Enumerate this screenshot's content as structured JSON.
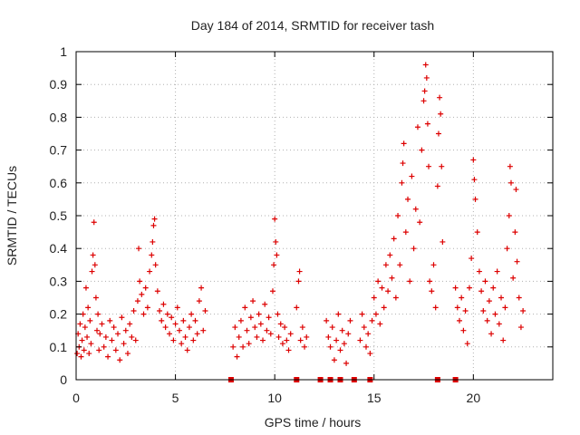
{
  "chart_data": {
    "type": "scatter",
    "title": "Day 184 of 2014, SRMTID for receiver tash",
    "xlabel": "GPS time / hours",
    "ylabel": "SRMTID / TECUs",
    "xlim": [
      0,
      24
    ],
    "ylim": [
      0,
      1
    ],
    "xticks": [
      0,
      5,
      10,
      15,
      20
    ],
    "xtick_labels": [
      "0",
      "5",
      "10",
      "15",
      "20"
    ],
    "yticks": [
      0,
      0.1,
      0.2,
      0.3,
      0.4,
      0.5,
      0.6,
      0.7,
      0.8,
      0.9,
      1
    ],
    "ytick_labels": [
      "0",
      "0.1",
      "0.2",
      "0.3",
      "0.4",
      "0.5",
      "0.6",
      "0.7",
      "0.8",
      "0.9",
      "1"
    ],
    "grid": true,
    "marker": "+",
    "color": "#dd0000",
    "zero_markers_x": [
      7.8,
      11.1,
      12.3,
      12.8,
      13.3,
      14.0,
      14.8,
      18.2,
      19.1
    ],
    "series": [
      {
        "name": "SRMTID",
        "points": [
          [
            0.05,
            0.08
          ],
          [
            0.1,
            0.14
          ],
          [
            0.15,
            0.1
          ],
          [
            0.2,
            0.17
          ],
          [
            0.25,
            0.07
          ],
          [
            0.3,
            0.12
          ],
          [
            0.35,
            0.2
          ],
          [
            0.4,
            0.09
          ],
          [
            0.45,
            0.16
          ],
          [
            0.5,
            0.28
          ],
          [
            0.55,
            0.13
          ],
          [
            0.6,
            0.22
          ],
          [
            0.65,
            0.08
          ],
          [
            0.7,
            0.18
          ],
          [
            0.75,
            0.11
          ],
          [
            0.8,
            0.33
          ],
          [
            0.85,
            0.38
          ],
          [
            0.9,
            0.48
          ],
          [
            0.95,
            0.35
          ],
          [
            1.0,
            0.25
          ],
          [
            1.05,
            0.15
          ],
          [
            1.1,
            0.2
          ],
          [
            1.15,
            0.09
          ],
          [
            1.2,
            0.14
          ],
          [
            1.3,
            0.17
          ],
          [
            1.4,
            0.1
          ],
          [
            1.5,
            0.13
          ],
          [
            1.6,
            0.07
          ],
          [
            1.7,
            0.18
          ],
          [
            1.8,
            0.12
          ],
          [
            1.9,
            0.16
          ],
          [
            2.0,
            0.09
          ],
          [
            2.1,
            0.14
          ],
          [
            2.2,
            0.06
          ],
          [
            2.3,
            0.19
          ],
          [
            2.4,
            0.11
          ],
          [
            2.5,
            0.15
          ],
          [
            2.6,
            0.08
          ],
          [
            2.7,
            0.17
          ],
          [
            2.8,
            0.13
          ],
          [
            2.9,
            0.21
          ],
          [
            3.0,
            0.12
          ],
          [
            3.1,
            0.24
          ],
          [
            3.15,
            0.4
          ],
          [
            3.2,
            0.3
          ],
          [
            3.3,
            0.26
          ],
          [
            3.4,
            0.2
          ],
          [
            3.5,
            0.28
          ],
          [
            3.6,
            0.22
          ],
          [
            3.7,
            0.33
          ],
          [
            3.8,
            0.38
          ],
          [
            3.85,
            0.42
          ],
          [
            3.9,
            0.47
          ],
          [
            3.95,
            0.49
          ],
          [
            4.0,
            0.35
          ],
          [
            4.1,
            0.27
          ],
          [
            4.2,
            0.21
          ],
          [
            4.3,
            0.18
          ],
          [
            4.4,
            0.23
          ],
          [
            4.5,
            0.16
          ],
          [
            4.6,
            0.2
          ],
          [
            4.7,
            0.14
          ],
          [
            4.8,
            0.19
          ],
          [
            4.9,
            0.12
          ],
          [
            5.0,
            0.17
          ],
          [
            5.1,
            0.22
          ],
          [
            5.2,
            0.15
          ],
          [
            5.3,
            0.11
          ],
          [
            5.4,
            0.18
          ],
          [
            5.5,
            0.13
          ],
          [
            5.6,
            0.09
          ],
          [
            5.7,
            0.16
          ],
          [
            5.8,
            0.2
          ],
          [
            5.9,
            0.12
          ],
          [
            6.0,
            0.18
          ],
          [
            6.1,
            0.14
          ],
          [
            6.2,
            0.24
          ],
          [
            6.3,
            0.28
          ],
          [
            6.4,
            0.15
          ],
          [
            6.5,
            0.21
          ],
          [
            7.9,
            0.1
          ],
          [
            8.0,
            0.16
          ],
          [
            8.1,
            0.07
          ],
          [
            8.2,
            0.13
          ],
          [
            8.3,
            0.18
          ],
          [
            8.4,
            0.1
          ],
          [
            8.5,
            0.22
          ],
          [
            8.6,
            0.15
          ],
          [
            8.7,
            0.11
          ],
          [
            8.8,
            0.19
          ],
          [
            8.9,
            0.24
          ],
          [
            9.0,
            0.16
          ],
          [
            9.1,
            0.13
          ],
          [
            9.2,
            0.2
          ],
          [
            9.3,
            0.17
          ],
          [
            9.4,
            0.12
          ],
          [
            9.5,
            0.23
          ],
          [
            9.6,
            0.15
          ],
          [
            9.7,
            0.19
          ],
          [
            9.8,
            0.14
          ],
          [
            9.9,
            0.27
          ],
          [
            9.95,
            0.35
          ],
          [
            10.0,
            0.49
          ],
          [
            10.05,
            0.42
          ],
          [
            10.1,
            0.38
          ],
          [
            10.15,
            0.2
          ],
          [
            10.2,
            0.13
          ],
          [
            10.3,
            0.17
          ],
          [
            10.4,
            0.11
          ],
          [
            10.5,
            0.16
          ],
          [
            10.6,
            0.12
          ],
          [
            10.7,
            0.09
          ],
          [
            10.8,
            0.14
          ],
          [
            11.1,
            0.22
          ],
          [
            11.2,
            0.3
          ],
          [
            11.25,
            0.33
          ],
          [
            11.3,
            0.12
          ],
          [
            11.4,
            0.16
          ],
          [
            11.5,
            0.1
          ],
          [
            11.6,
            0.13
          ],
          [
            12.6,
            0.18
          ],
          [
            12.7,
            0.13
          ],
          [
            12.8,
            0.1
          ],
          [
            12.9,
            0.16
          ],
          [
            13.0,
            0.06
          ],
          [
            13.1,
            0.12
          ],
          [
            13.2,
            0.2
          ],
          [
            13.3,
            0.09
          ],
          [
            13.4,
            0.15
          ],
          [
            13.5,
            0.11
          ],
          [
            13.6,
            0.05
          ],
          [
            13.7,
            0.14
          ],
          [
            13.8,
            0.18
          ],
          [
            14.3,
            0.12
          ],
          [
            14.4,
            0.2
          ],
          [
            14.5,
            0.16
          ],
          [
            14.6,
            0.1
          ],
          [
            14.7,
            0.14
          ],
          [
            14.8,
            0.08
          ],
          [
            14.9,
            0.18
          ],
          [
            15.0,
            0.25
          ],
          [
            15.1,
            0.2
          ],
          [
            15.2,
            0.3
          ],
          [
            15.3,
            0.17
          ],
          [
            15.4,
            0.28
          ],
          [
            15.5,
            0.22
          ],
          [
            15.6,
            0.35
          ],
          [
            15.7,
            0.27
          ],
          [
            15.8,
            0.38
          ],
          [
            15.9,
            0.31
          ],
          [
            16.0,
            0.43
          ],
          [
            16.1,
            0.25
          ],
          [
            16.2,
            0.5
          ],
          [
            16.3,
            0.35
          ],
          [
            16.4,
            0.6
          ],
          [
            16.45,
            0.66
          ],
          [
            16.5,
            0.72
          ],
          [
            16.6,
            0.45
          ],
          [
            16.7,
            0.55
          ],
          [
            16.8,
            0.3
          ],
          [
            16.9,
            0.62
          ],
          [
            17.0,
            0.4
          ],
          [
            17.1,
            0.52
          ],
          [
            17.2,
            0.77
          ],
          [
            17.3,
            0.48
          ],
          [
            17.4,
            0.7
          ],
          [
            17.5,
            0.85
          ],
          [
            17.55,
            0.88
          ],
          [
            17.6,
            0.96
          ],
          [
            17.65,
            0.92
          ],
          [
            17.7,
            0.78
          ],
          [
            17.75,
            0.65
          ],
          [
            17.8,
            0.3
          ],
          [
            17.9,
            0.27
          ],
          [
            18.0,
            0.35
          ],
          [
            18.1,
            0.22
          ],
          [
            18.2,
            0.59
          ],
          [
            18.25,
            0.75
          ],
          [
            18.3,
            0.86
          ],
          [
            18.35,
            0.81
          ],
          [
            18.4,
            0.65
          ],
          [
            18.45,
            0.42
          ],
          [
            19.1,
            0.28
          ],
          [
            19.2,
            0.22
          ],
          [
            19.3,
            0.18
          ],
          [
            19.4,
            0.25
          ],
          [
            19.5,
            0.15
          ],
          [
            19.6,
            0.21
          ],
          [
            19.7,
            0.11
          ],
          [
            19.8,
            0.28
          ],
          [
            19.9,
            0.37
          ],
          [
            20.0,
            0.67
          ],
          [
            20.05,
            0.61
          ],
          [
            20.1,
            0.55
          ],
          [
            20.2,
            0.45
          ],
          [
            20.3,
            0.33
          ],
          [
            20.4,
            0.27
          ],
          [
            20.5,
            0.21
          ],
          [
            20.6,
            0.3
          ],
          [
            20.7,
            0.18
          ],
          [
            20.8,
            0.24
          ],
          [
            20.9,
            0.14
          ],
          [
            21.0,
            0.28
          ],
          [
            21.1,
            0.2
          ],
          [
            21.2,
            0.33
          ],
          [
            21.3,
            0.17
          ],
          [
            21.4,
            0.25
          ],
          [
            21.5,
            0.12
          ],
          [
            21.6,
            0.22
          ],
          [
            21.7,
            0.4
          ],
          [
            21.8,
            0.5
          ],
          [
            21.85,
            0.65
          ],
          [
            21.9,
            0.6
          ],
          [
            22.0,
            0.31
          ],
          [
            22.1,
            0.45
          ],
          [
            22.15,
            0.58
          ],
          [
            22.2,
            0.36
          ],
          [
            22.3,
            0.25
          ],
          [
            22.4,
            0.16
          ],
          [
            22.5,
            0.21
          ]
        ]
      }
    ]
  }
}
